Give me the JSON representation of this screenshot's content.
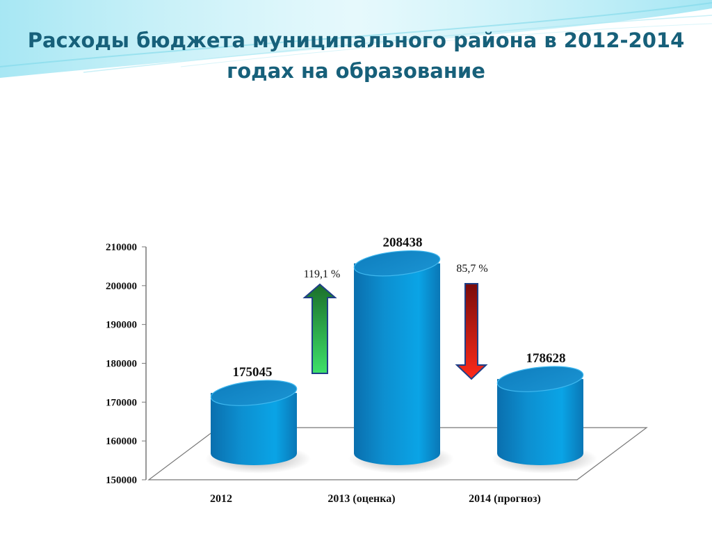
{
  "slide": {
    "title_line1": "Расходы бюджета муниципального района в 2012-2014",
    "title_line2": "годах на образование"
  },
  "colors": {
    "title": "#17607a",
    "bar_side": "#0d8fd0",
    "bar_top": "#1588c9",
    "arrow_up": "#1f9a3a",
    "arrow_down": "#d11414",
    "arrow_outline": "#1f3f87"
  },
  "chart_data": {
    "type": "bar",
    "style": "3d-cylinder",
    "categories": [
      "2012",
      "2013 (оценка)",
      "2014 (прогноз)"
    ],
    "values": [
      175045,
      208438,
      178628
    ],
    "data_labels": [
      "175045",
      "208438",
      "178628"
    ],
    "ylim": [
      150000,
      210000
    ],
    "yticks": [
      {
        "value": 150000,
        "label": "150000"
      },
      {
        "value": 160000,
        "label": "160000"
      },
      {
        "value": 170000,
        "label": "170000"
      },
      {
        "value": 180000,
        "label": "180000"
      },
      {
        "value": 190000,
        "label": "190000"
      },
      {
        "value": 200000,
        "label": "200000"
      },
      {
        "value": 210000,
        "label": "210000"
      }
    ],
    "grid": false,
    "legend": "none",
    "annotations": [
      {
        "text": "119,1 %",
        "direction": "up",
        "between": [
          "2012",
          "2013 (оценка)"
        ]
      },
      {
        "text": "85,7 %",
        "direction": "down",
        "between": [
          "2013 (оценка)",
          "2014 (прогноз)"
        ]
      }
    ]
  }
}
